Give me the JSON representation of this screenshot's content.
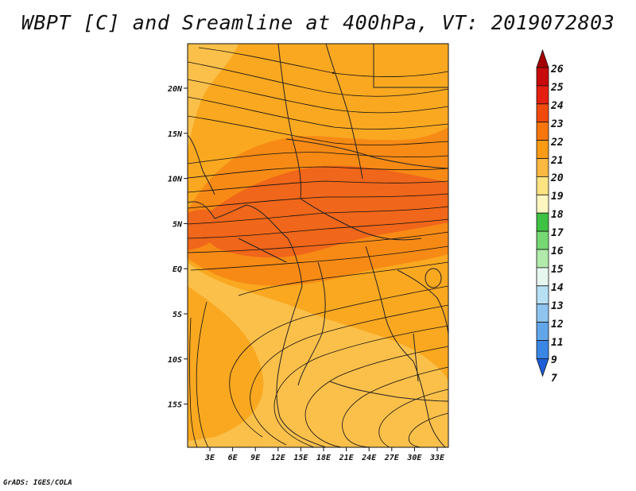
{
  "title": "WBPT [C] and Sreamline at 400hPa, VT: 2019072803",
  "credit": "GrADS: IGES/COLA",
  "map": {
    "lat_labels": [
      "20N",
      "15N",
      "10N",
      "5N",
      "EQ",
      "5S",
      "10S",
      "15S"
    ],
    "lon_labels": [
      "3E",
      "6E",
      "9E",
      "12E",
      "15E",
      "18E",
      "21E",
      "24E",
      "27E",
      "30E",
      "33E"
    ]
  },
  "colorbar": {
    "levels": [
      "26",
      "25",
      "24",
      "23",
      "22",
      "21",
      "20",
      "19",
      "18",
      "17",
      "16",
      "15",
      "14",
      "13",
      "12",
      "11",
      "9",
      "7"
    ],
    "colors": [
      "#a50000",
      "#c80a0a",
      "#e41f10",
      "#f04a0d",
      "#f7770d",
      "#fa9a15",
      "#fcb840",
      "#fde482",
      "#fef6c0",
      "#3ec243",
      "#75d872",
      "#b1eaab",
      "#e6f7f0",
      "#b7e0f5",
      "#8ec4ef",
      "#62a6ea",
      "#3a86e4",
      "#1e5ed8"
    ]
  },
  "colors": {
    "field_base": "#f9a820",
    "field_light": "#fbc04a",
    "field_warm": "#f78a14",
    "field_hot": "#f0661a"
  }
}
